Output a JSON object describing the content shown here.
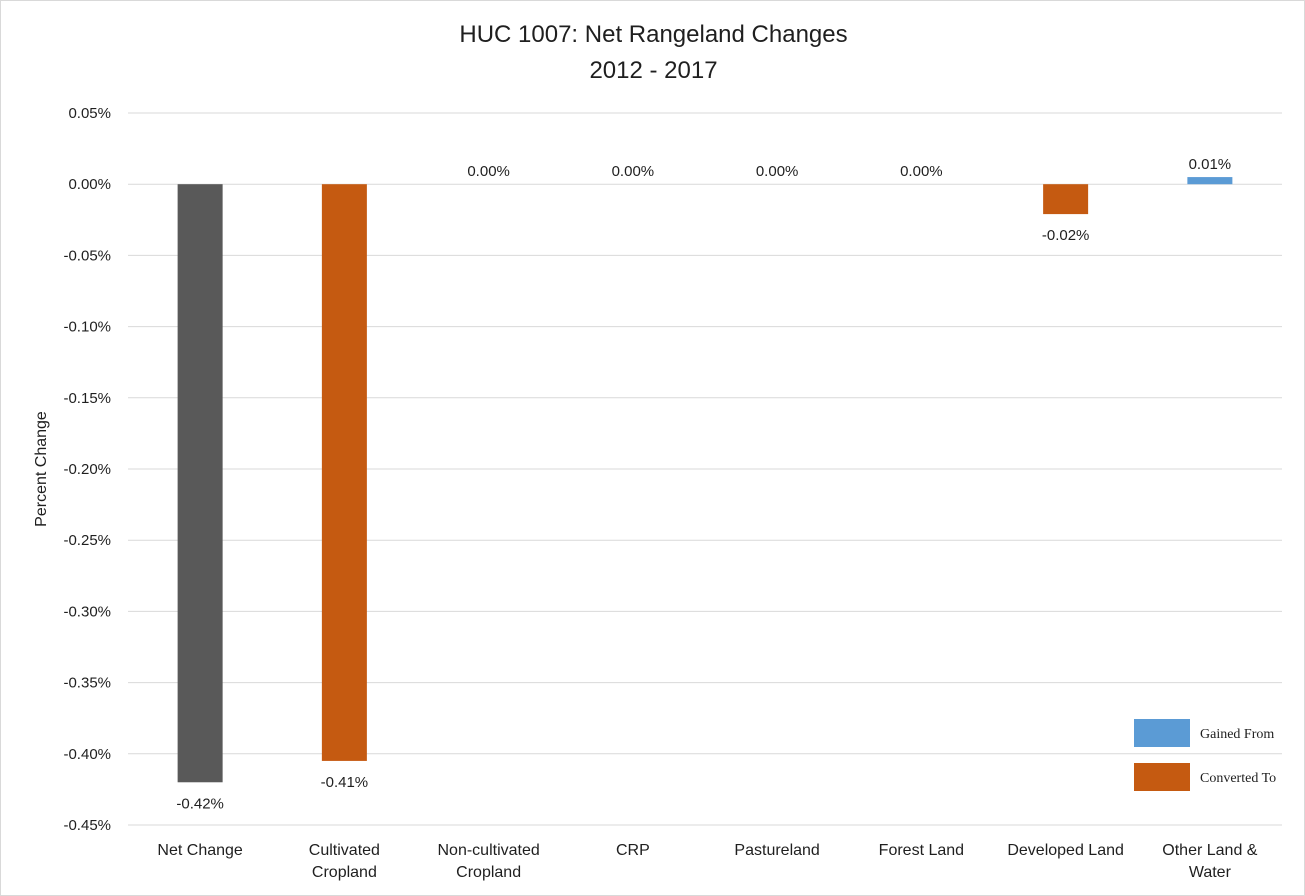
{
  "chart_data": {
    "type": "bar",
    "title": [
      "HUC 1007: Net Rangeland Changes",
      "2012 - 2017"
    ],
    "xlabel": "",
    "ylabel": "Percent Change",
    "ylim": [
      -0.45,
      0.05
    ],
    "ytick_step": 0.05,
    "yticks": [
      "0.05%",
      "0.00%",
      "-0.05%",
      "-0.10%",
      "-0.15%",
      "-0.20%",
      "-0.25%",
      "-0.30%",
      "-0.35%",
      "-0.40%",
      "-0.45%"
    ],
    "grid": true,
    "categories": [
      [
        "Net Change"
      ],
      [
        "Cultivated",
        "Cropland"
      ],
      [
        "Non-cultivated",
        "Cropland"
      ],
      [
        "CRP"
      ],
      [
        "Pastureland"
      ],
      [
        "Forest Land"
      ],
      [
        "Developed Land"
      ],
      [
        "Other Land &",
        "Water"
      ]
    ],
    "values": [
      -0.42,
      -0.405,
      0.0,
      0.0,
      0.0,
      0.0,
      -0.021,
      0.005
    ],
    "data_labels": [
      "-0.42%",
      "-0.41%",
      "0.00%",
      "0.00%",
      "0.00%",
      "0.00%",
      "-0.02%",
      "0.01%"
    ],
    "bar_series": [
      "net",
      "converted",
      "converted",
      "converted",
      "converted",
      "converted",
      "converted",
      "gained"
    ],
    "colors": {
      "net": "#595959",
      "converted": "#c55a11",
      "gained": "#5b9bd5",
      "grid": "#d9d9d9",
      "text": "#1f1f1f"
    },
    "legend": {
      "position": "bottom-right",
      "entries": [
        {
          "key": "gained",
          "name": "Gained From"
        },
        {
          "key": "converted",
          "name": "Converted To"
        }
      ]
    }
  }
}
